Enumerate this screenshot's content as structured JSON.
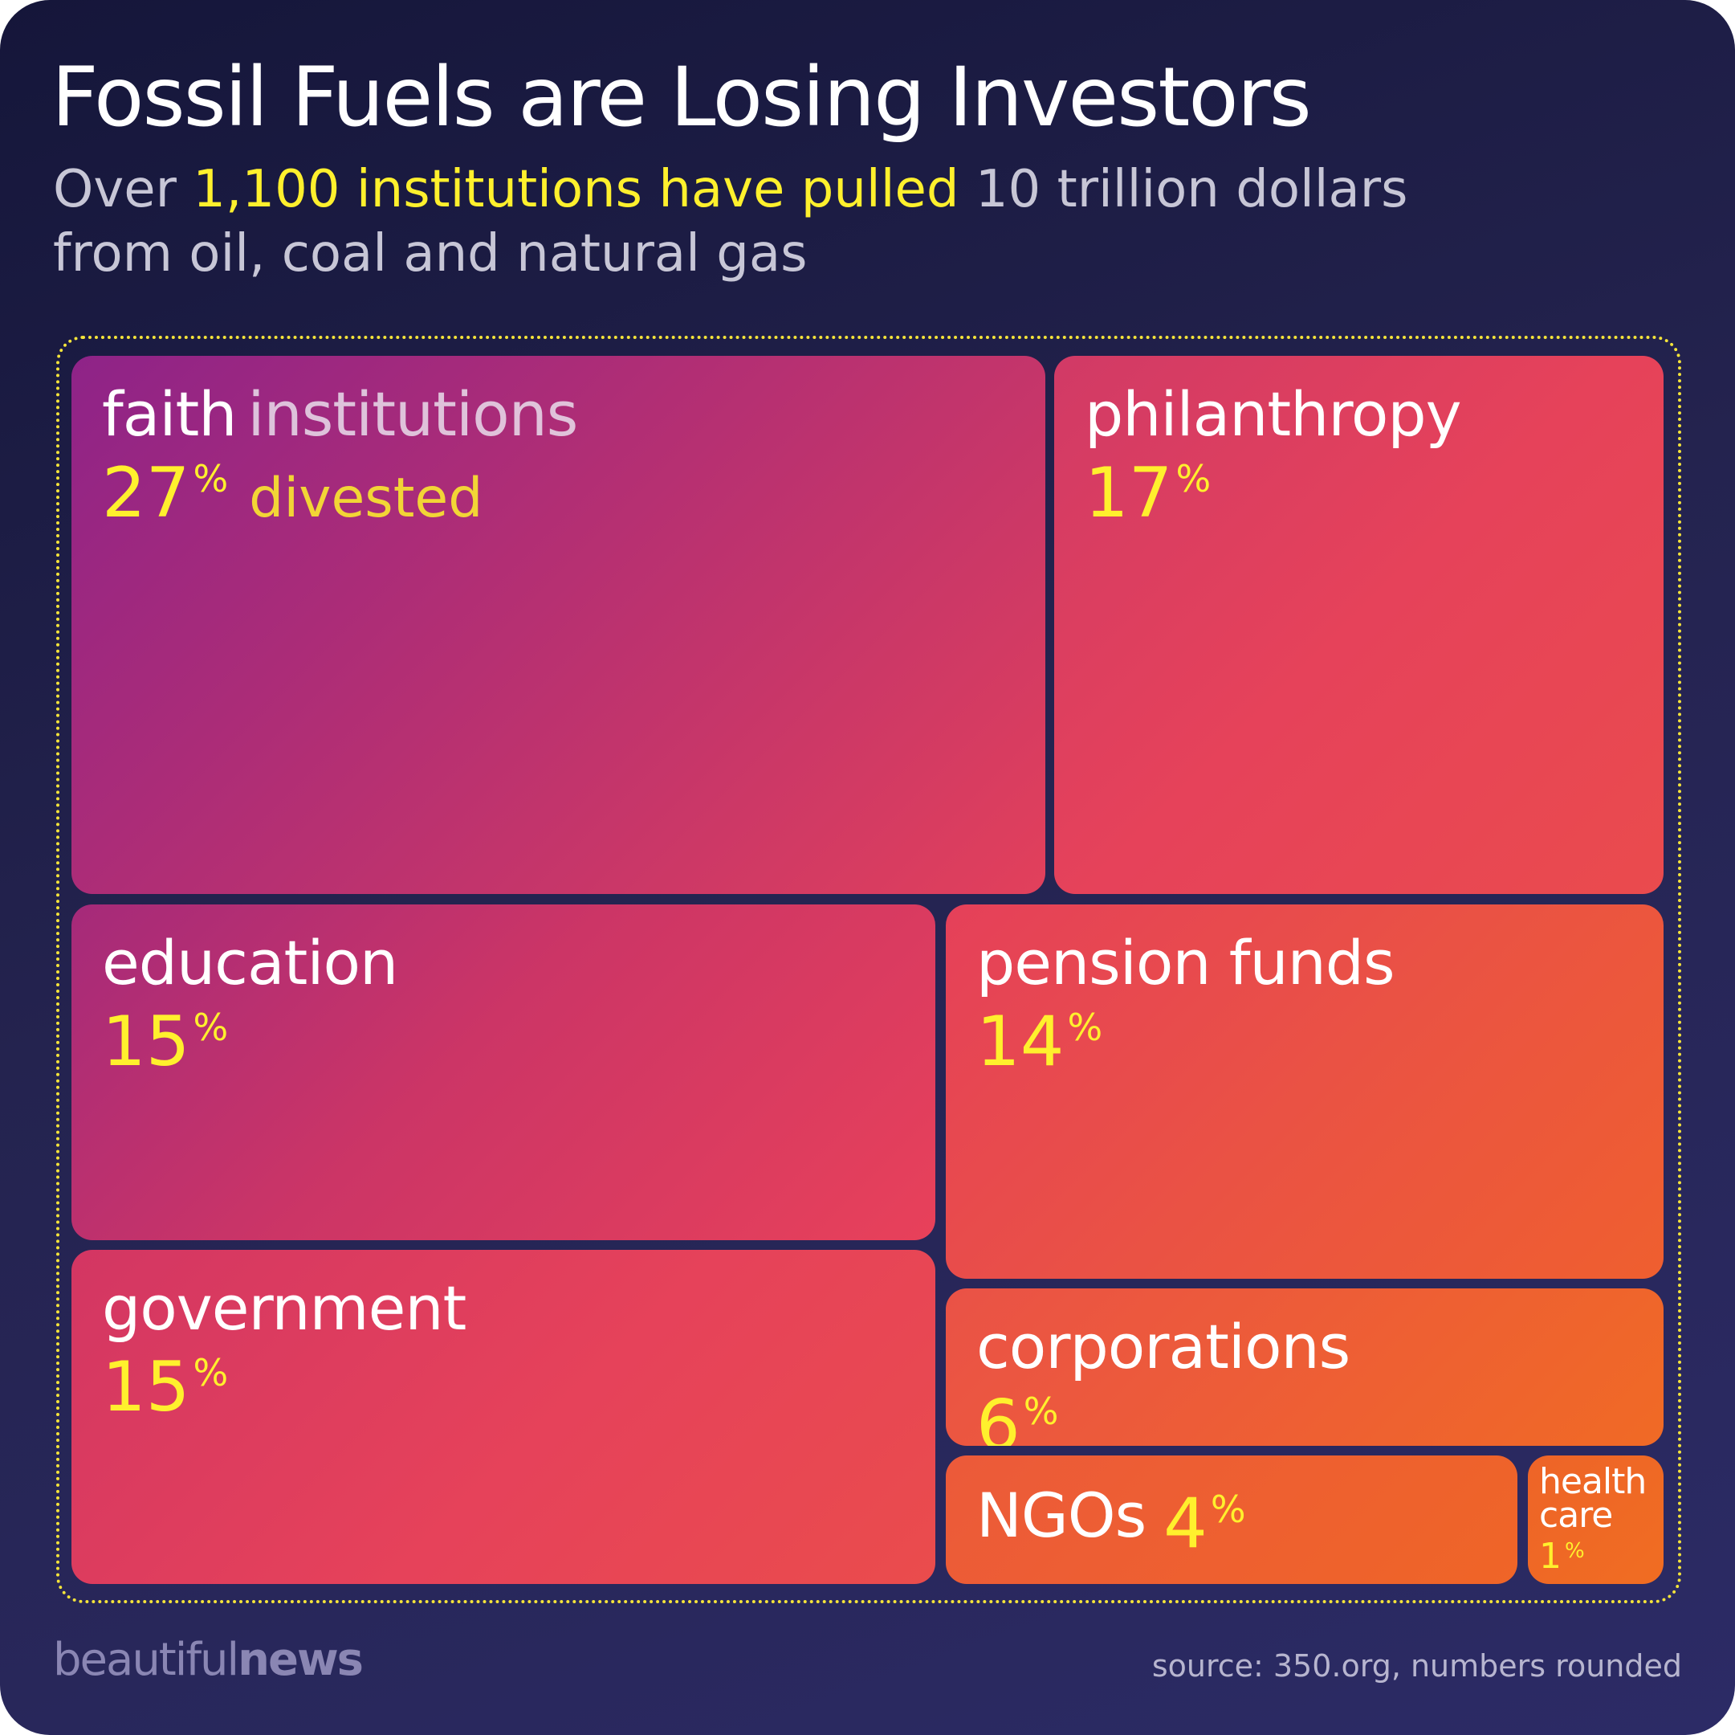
{
  "header": {
    "title": "Fossil Fuels are Losing Investors",
    "subtitle_prefix": "Over ",
    "subtitle_highlight": "1,100 institutions have pulled",
    "subtitle_suffix": " 10 trillion dollars",
    "subtitle_line2": "from oil, coal and natural gas"
  },
  "chart_data": {
    "type": "treemap",
    "title": "Fossil Fuels are Losing Investors",
    "unit": "% divested",
    "percent_sign": "%",
    "categories": [
      {
        "id": "faith",
        "name": "faith",
        "name_extra": "institutions",
        "value": 27,
        "value_note": "divested"
      },
      {
        "id": "philanthropy",
        "name": "philanthropy",
        "value": 17
      },
      {
        "id": "education",
        "name": "education",
        "value": 15
      },
      {
        "id": "government",
        "name": "government",
        "value": 15
      },
      {
        "id": "pension",
        "name": "pension funds",
        "value": 14
      },
      {
        "id": "corporations",
        "name": "corporations",
        "value": 6
      },
      {
        "id": "ngos",
        "name": "NGOs",
        "value": 4
      },
      {
        "id": "health",
        "name": "health care",
        "value": 1
      }
    ]
  },
  "colors": {
    "highlight": "#fff02d",
    "tile_purple": "#8e2388",
    "tile_red": "#e8415a",
    "tile_orange": "#f06a25"
  },
  "footer": {
    "brand_light": "beautiful",
    "brand_bold": "news",
    "source": "source: 350.org, numbers rounded"
  }
}
